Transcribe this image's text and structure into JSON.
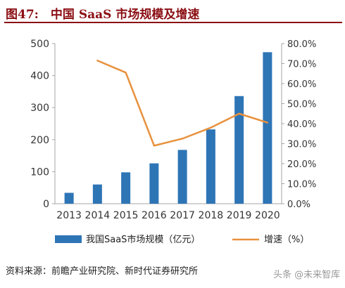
{
  "figure_title": "图47:　中国 SaaS 市场规模及增速",
  "source_note": "资料来源：前瞻产业研究院、新时代证券研究所",
  "watermark": "头条 @未来智库",
  "colors": {
    "bar": "#2e75b6",
    "line": "#e8913d",
    "title": "#8b0f14",
    "axis": "#a6a6a6"
  },
  "chart_data": {
    "type": "bar",
    "categories": [
      "2013",
      "2014",
      "2015",
      "2016",
      "2017",
      "2018",
      "2019",
      "2020"
    ],
    "series": [
      {
        "name": "我国SaaS市场规模（亿元）",
        "type": "bar",
        "axis": "left",
        "values": [
          34,
          60,
          98,
          126,
          168,
          232,
          336,
          473
        ]
      },
      {
        "name": "增速（%）",
        "type": "line",
        "axis": "right",
        "values": [
          null,
          71.5,
          65.5,
          29.0,
          32.5,
          38.0,
          45.0,
          40.5
        ]
      }
    ],
    "left_axis": {
      "ylim": [
        0,
        500
      ],
      "ticks": [
        "0",
        "100",
        "200",
        "300",
        "400",
        "500"
      ]
    },
    "right_axis": {
      "ylim": [
        0,
        80
      ],
      "ticks": [
        "0.0%",
        "10.0%",
        "20.0%",
        "30.0%",
        "40.0%",
        "50.0%",
        "60.0%",
        "70.0%",
        "80.0%"
      ]
    },
    "title": "",
    "xlabel": "",
    "ylabel": "",
    "grid": false,
    "legend_position": "bottom"
  }
}
